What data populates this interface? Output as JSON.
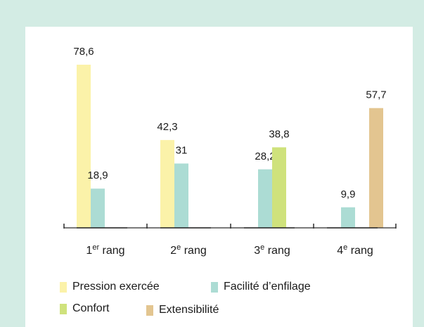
{
  "chart_data": {
    "type": "bar",
    "categories": [
      {
        "main": "1",
        "sup": "er",
        "suffix": " rang"
      },
      {
        "main": "2",
        "sup": "e",
        "suffix": " rang"
      },
      {
        "main": "3",
        "sup": "e",
        "suffix": " rang"
      },
      {
        "main": "4",
        "sup": "e",
        "suffix": " rang"
      }
    ],
    "series": [
      {
        "name": "Pression exercée",
        "color": "#fbf2a9",
        "values": [
          78.6,
          42.3,
          0,
          0
        ]
      },
      {
        "name": "Facilité d’enfilage",
        "color": "#acdcd4",
        "values": [
          18.9,
          31,
          28.2,
          9.9
        ]
      },
      {
        "name": "Confort",
        "color": "#cfe27c",
        "values": [
          0,
          0,
          38.8,
          0
        ]
      },
      {
        "name": "Extensibilité",
        "color": "#e3c590",
        "values": [
          0,
          0,
          0,
          57.7
        ]
      }
    ],
    "bars": [
      {
        "category": 0,
        "series": 0,
        "value": 78.6,
        "label": "78,6"
      },
      {
        "category": 0,
        "series": 1,
        "value": 18.9,
        "label": "18,9"
      },
      {
        "category": 1,
        "series": 0,
        "value": 42.3,
        "label": "42,3"
      },
      {
        "category": 1,
        "series": 1,
        "value": 31,
        "label": "31"
      },
      {
        "category": 2,
        "series": 1,
        "value": 28.2,
        "label": "28,2"
      },
      {
        "category": 2,
        "series": 2,
        "value": 38.8,
        "label": "38,8"
      },
      {
        "category": 3,
        "series": 1,
        "value": 9.9,
        "label": "9,9"
      },
      {
        "category": 3,
        "series": 3,
        "value": 57.7,
        "label": "57,7"
      }
    ],
    "ylim": [
      0,
      80
    ],
    "grid": false,
    "legend_position": "bottom",
    "axis_color": "#2b2b2b",
    "label_color": "#1a1a1a"
  }
}
